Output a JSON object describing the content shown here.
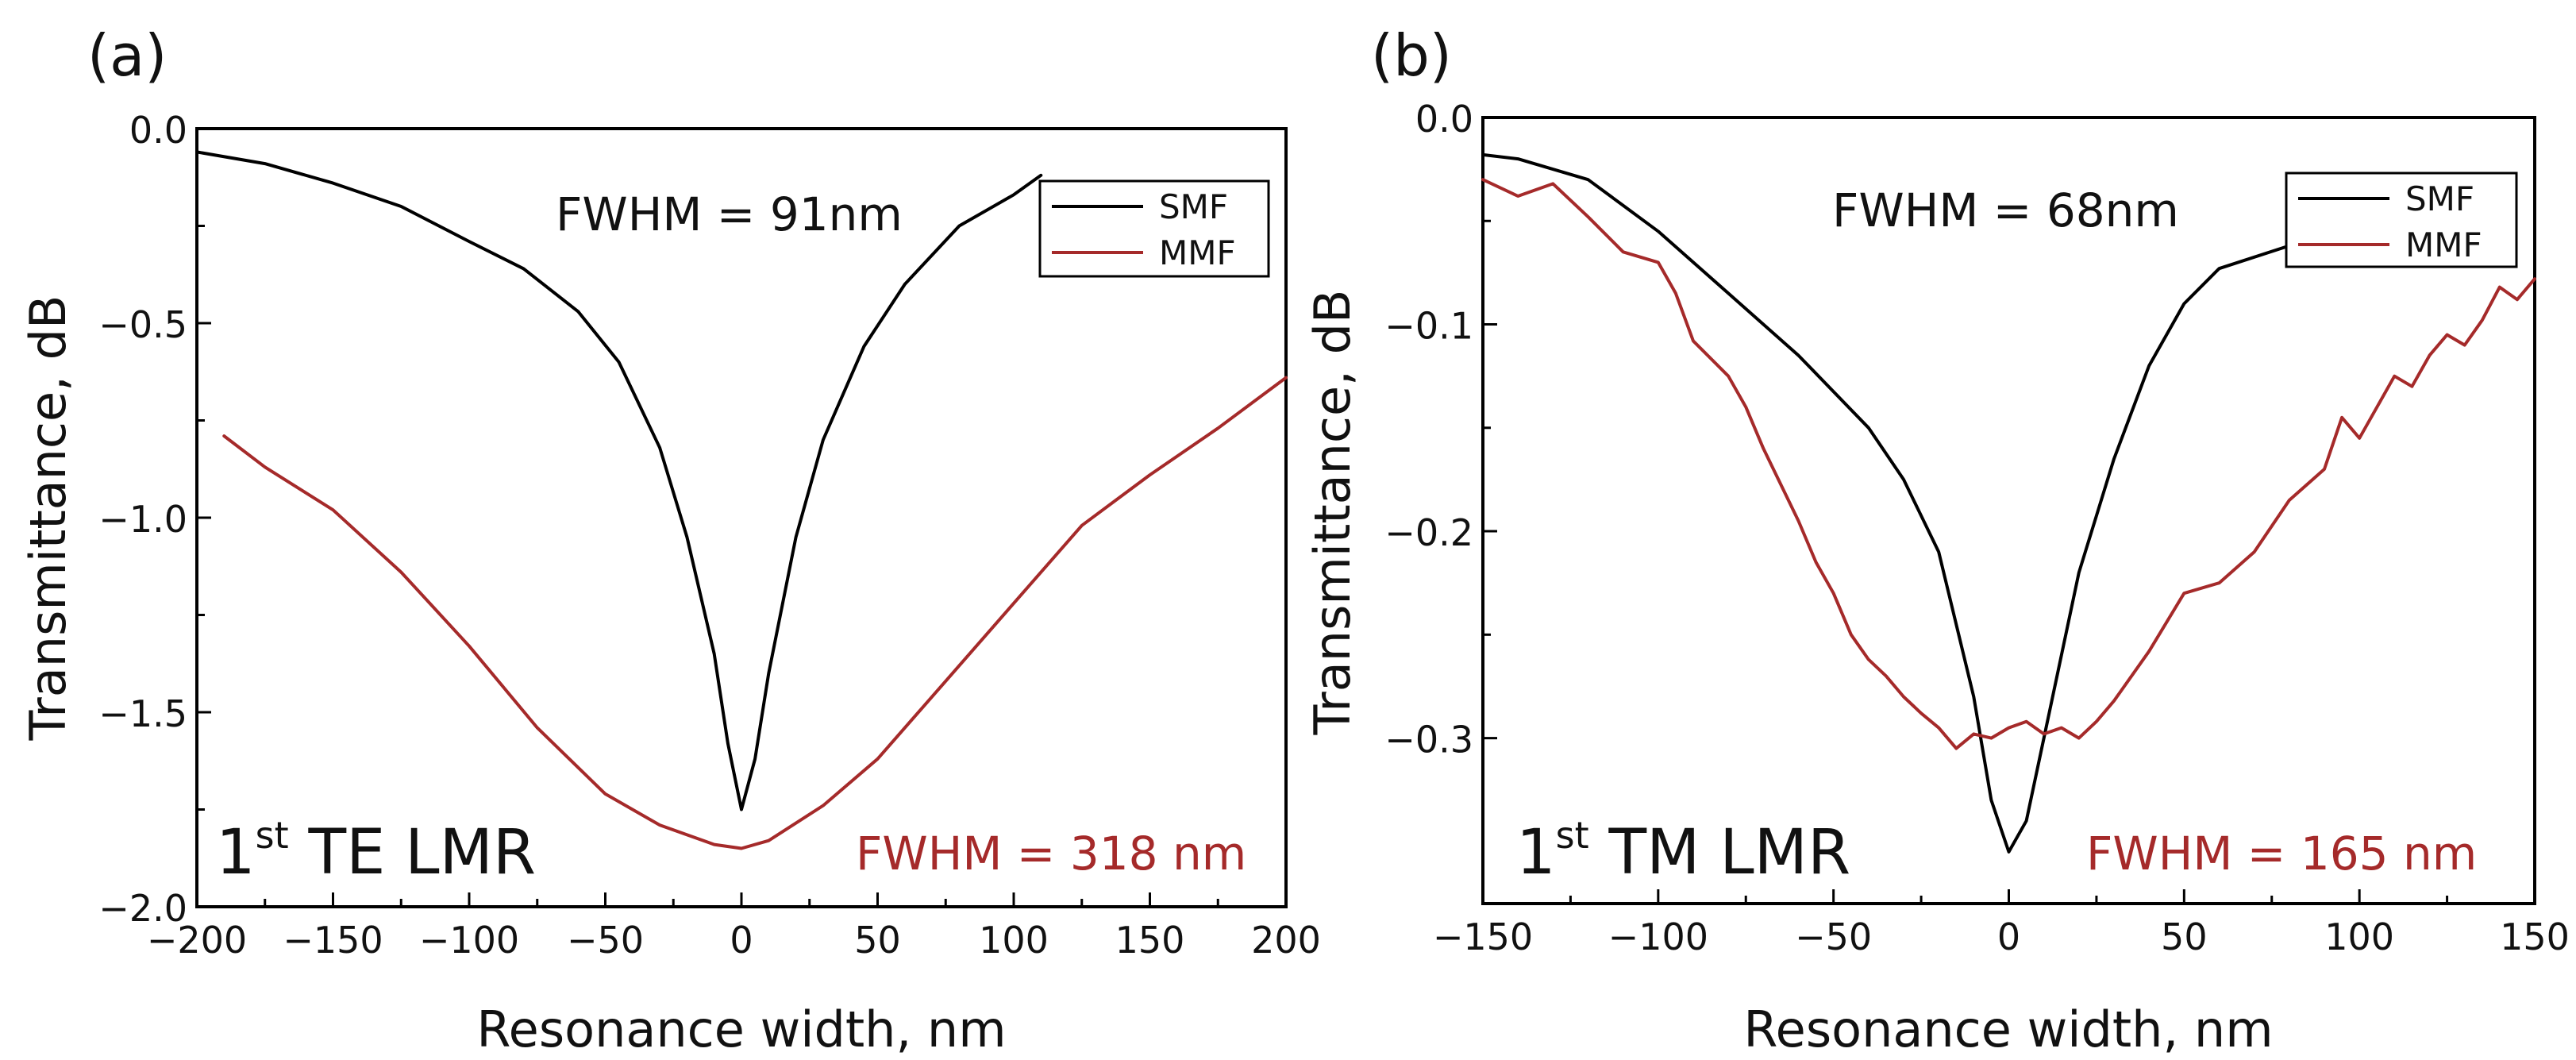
{
  "chart_data": [
    {
      "panel": "(a)",
      "type": "line",
      "xlabel": "Resonance width, nm",
      "ylabel": "Transmittance, dB",
      "xlim": [
        -200,
        200
      ],
      "ylim": [
        -2.0,
        0.0
      ],
      "xticks": [
        "−200",
        "−150",
        "−100",
        "−50",
        "0",
        "50",
        "100",
        "150",
        "200"
      ],
      "xtick_values": [
        -200,
        -150,
        -100,
        -50,
        0,
        50,
        100,
        150,
        200
      ],
      "yticks": [
        "0.0",
        "−0.5",
        "−1.0",
        "−1.5",
        "−2.0"
      ],
      "ytick_values": [
        0.0,
        -0.5,
        -1.0,
        -1.5,
        -2.0
      ],
      "annotations": {
        "fwhm_smf": "FWHM = 91nm",
        "fwhm_mmf": "FWHM = 318 nm",
        "mode_prefix": "1",
        "mode_sup": "st",
        "mode_rest": " TE LMR"
      },
      "legend": {
        "placement": "top-right",
        "entries": [
          "SMF",
          "MMF"
        ]
      },
      "series": [
        {
          "name": "SMF",
          "color": "#000000",
          "x": [
            -200,
            -175,
            -150,
            -125,
            -100,
            -80,
            -60,
            -45,
            -30,
            -20,
            -10,
            -5,
            0,
            5,
            10,
            20,
            30,
            45,
            60,
            80,
            100,
            110
          ],
          "y": [
            -0.06,
            -0.09,
            -0.14,
            -0.2,
            -0.29,
            -0.36,
            -0.47,
            -0.6,
            -0.82,
            -1.05,
            -1.35,
            -1.58,
            -1.75,
            -1.62,
            -1.4,
            -1.05,
            -0.8,
            -0.56,
            -0.4,
            -0.25,
            -0.17,
            -0.12
          ]
        },
        {
          "name": "MMF",
          "color": "#a52a2a",
          "x": [
            -190,
            -175,
            -150,
            -125,
            -100,
            -75,
            -50,
            -30,
            -10,
            0,
            10,
            30,
            50,
            75,
            100,
            125,
            150,
            175,
            200
          ],
          "y": [
            -0.79,
            -0.87,
            -0.98,
            -1.14,
            -1.33,
            -1.54,
            -1.71,
            -1.79,
            -1.84,
            -1.85,
            -1.83,
            -1.74,
            -1.62,
            -1.42,
            -1.22,
            -1.02,
            -0.89,
            -0.77,
            -0.64
          ]
        }
      ]
    },
    {
      "panel": "(b)",
      "type": "line",
      "xlabel": "Resonance width, nm",
      "ylabel": "Transmittance, dB",
      "xlim": [
        -150,
        150
      ],
      "ylim": [
        -0.38,
        0.0
      ],
      "xticks": [
        "−150",
        "−100",
        "−50",
        "0",
        "50",
        "100",
        "150"
      ],
      "xtick_values": [
        -150,
        -100,
        -50,
        0,
        50,
        100,
        150
      ],
      "yticks": [
        "0.0",
        "−0.1",
        "−0.2",
        "−0.3"
      ],
      "ytick_values": [
        0.0,
        -0.1,
        -0.2,
        -0.3
      ],
      "annotations": {
        "fwhm_smf": "FWHM = 68nm",
        "fwhm_mmf": "FWHM = 165 nm",
        "mode_prefix": "1",
        "mode_sup": "st",
        "mode_rest": " TM LMR"
      },
      "legend": {
        "placement": "top-right",
        "entries": [
          "SMF",
          "MMF"
        ]
      },
      "series": [
        {
          "name": "SMF",
          "color": "#000000",
          "x": [
            -150,
            -140,
            -120,
            -100,
            -80,
            -60,
            -40,
            -30,
            -20,
            -10,
            -5,
            0,
            5,
            10,
            20,
            30,
            40,
            50,
            60,
            80,
            100
          ],
          "y": [
            -0.018,
            -0.02,
            -0.03,
            -0.055,
            -0.085,
            -0.115,
            -0.15,
            -0.175,
            -0.21,
            -0.28,
            -0.33,
            -0.355,
            -0.34,
            -0.3,
            -0.22,
            -0.165,
            -0.12,
            -0.09,
            -0.073,
            -0.062,
            -0.05
          ]
        },
        {
          "name": "MMF",
          "color": "#a52a2a",
          "x": [
            -150,
            -140,
            -130,
            -120,
            -110,
            -100,
            -95,
            -90,
            -80,
            -75,
            -70,
            -60,
            -55,
            -50,
            -45,
            -40,
            -35,
            -30,
            -25,
            -20,
            -15,
            -10,
            -5,
            0,
            5,
            10,
            15,
            20,
            25,
            30,
            40,
            50,
            60,
            70,
            80,
            90,
            95,
            100,
            105,
            110,
            115,
            120,
            125,
            130,
            135,
            140,
            145,
            150
          ],
          "y": [
            -0.03,
            -0.038,
            -0.032,
            -0.048,
            -0.065,
            -0.07,
            -0.085,
            -0.108,
            -0.125,
            -0.14,
            -0.16,
            -0.195,
            -0.215,
            -0.23,
            -0.25,
            -0.262,
            -0.27,
            -0.28,
            -0.288,
            -0.295,
            -0.305,
            -0.298,
            -0.3,
            -0.295,
            -0.292,
            -0.298,
            -0.295,
            -0.3,
            -0.292,
            -0.282,
            -0.258,
            -0.23,
            -0.225,
            -0.21,
            -0.185,
            -0.17,
            -0.145,
            -0.155,
            -0.14,
            -0.125,
            -0.13,
            -0.115,
            -0.105,
            -0.11,
            -0.098,
            -0.082,
            -0.088,
            -0.078
          ]
        }
      ]
    }
  ]
}
